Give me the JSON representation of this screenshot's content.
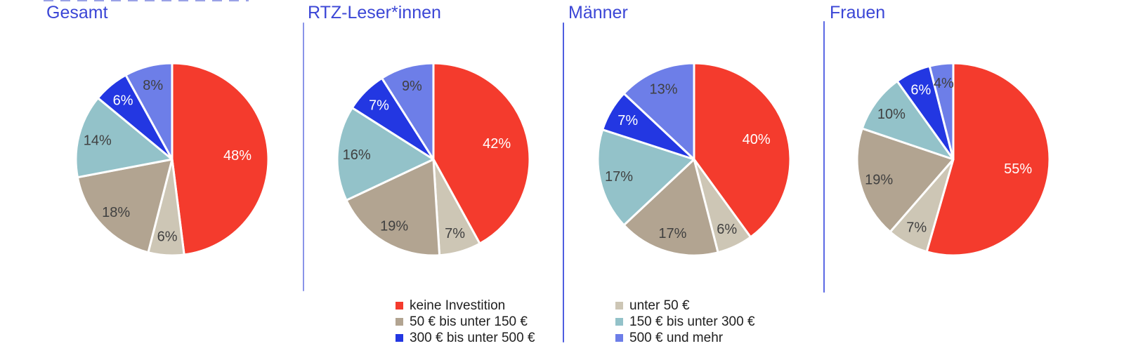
{
  "chart_data": {
    "type": "pie",
    "layout": "four-small-multiples",
    "categories": [
      "keine Investition",
      "unter 50 €",
      "50 € bis unter 150 €",
      "150 € bis unter 300 €",
      "300 € bis unter 500 €",
      "500 € und mehr"
    ],
    "colors": [
      "#F43B2D",
      "#CDC6B5",
      "#B2A491",
      "#93C2C9",
      "#2337E2",
      "#6D7EE8"
    ],
    "label_colors": [
      "#FFFFFF",
      "#404040",
      "#404040",
      "#404040",
      "#FFFFFF",
      "#404040"
    ],
    "series": [
      {
        "name": "Gesamt",
        "values": [
          48,
          6,
          18,
          14,
          6,
          8
        ],
        "labels": [
          "48%",
          "6%",
          "18%",
          "14%",
          "6%",
          "8%"
        ]
      },
      {
        "name": "RTZ-Leser*innen",
        "values": [
          42,
          7,
          19,
          16,
          7,
          9
        ],
        "labels": [
          "42%",
          "7%",
          "19%",
          "16%",
          "7%",
          "9%"
        ]
      },
      {
        "name": "Männer",
        "values": [
          40,
          6,
          17,
          17,
          7,
          13
        ],
        "labels": [
          "40%",
          "6%",
          "17%",
          "17%",
          "7%",
          "13%"
        ]
      },
      {
        "name": "Frauen",
        "values": [
          55,
          7,
          19,
          10,
          6,
          4
        ],
        "labels": [
          "55%",
          "7%",
          "19%",
          "10%",
          "6%",
          "4%"
        ]
      }
    ],
    "value_suffix": "%",
    "start_angle_deg": 0,
    "direction": "clockwise",
    "legend_position": "bottom-center-two-columns",
    "title_color": "#3B46D6"
  },
  "legend": {
    "columns": [
      [
        0,
        2,
        4
      ],
      [
        1,
        3,
        5
      ]
    ]
  }
}
